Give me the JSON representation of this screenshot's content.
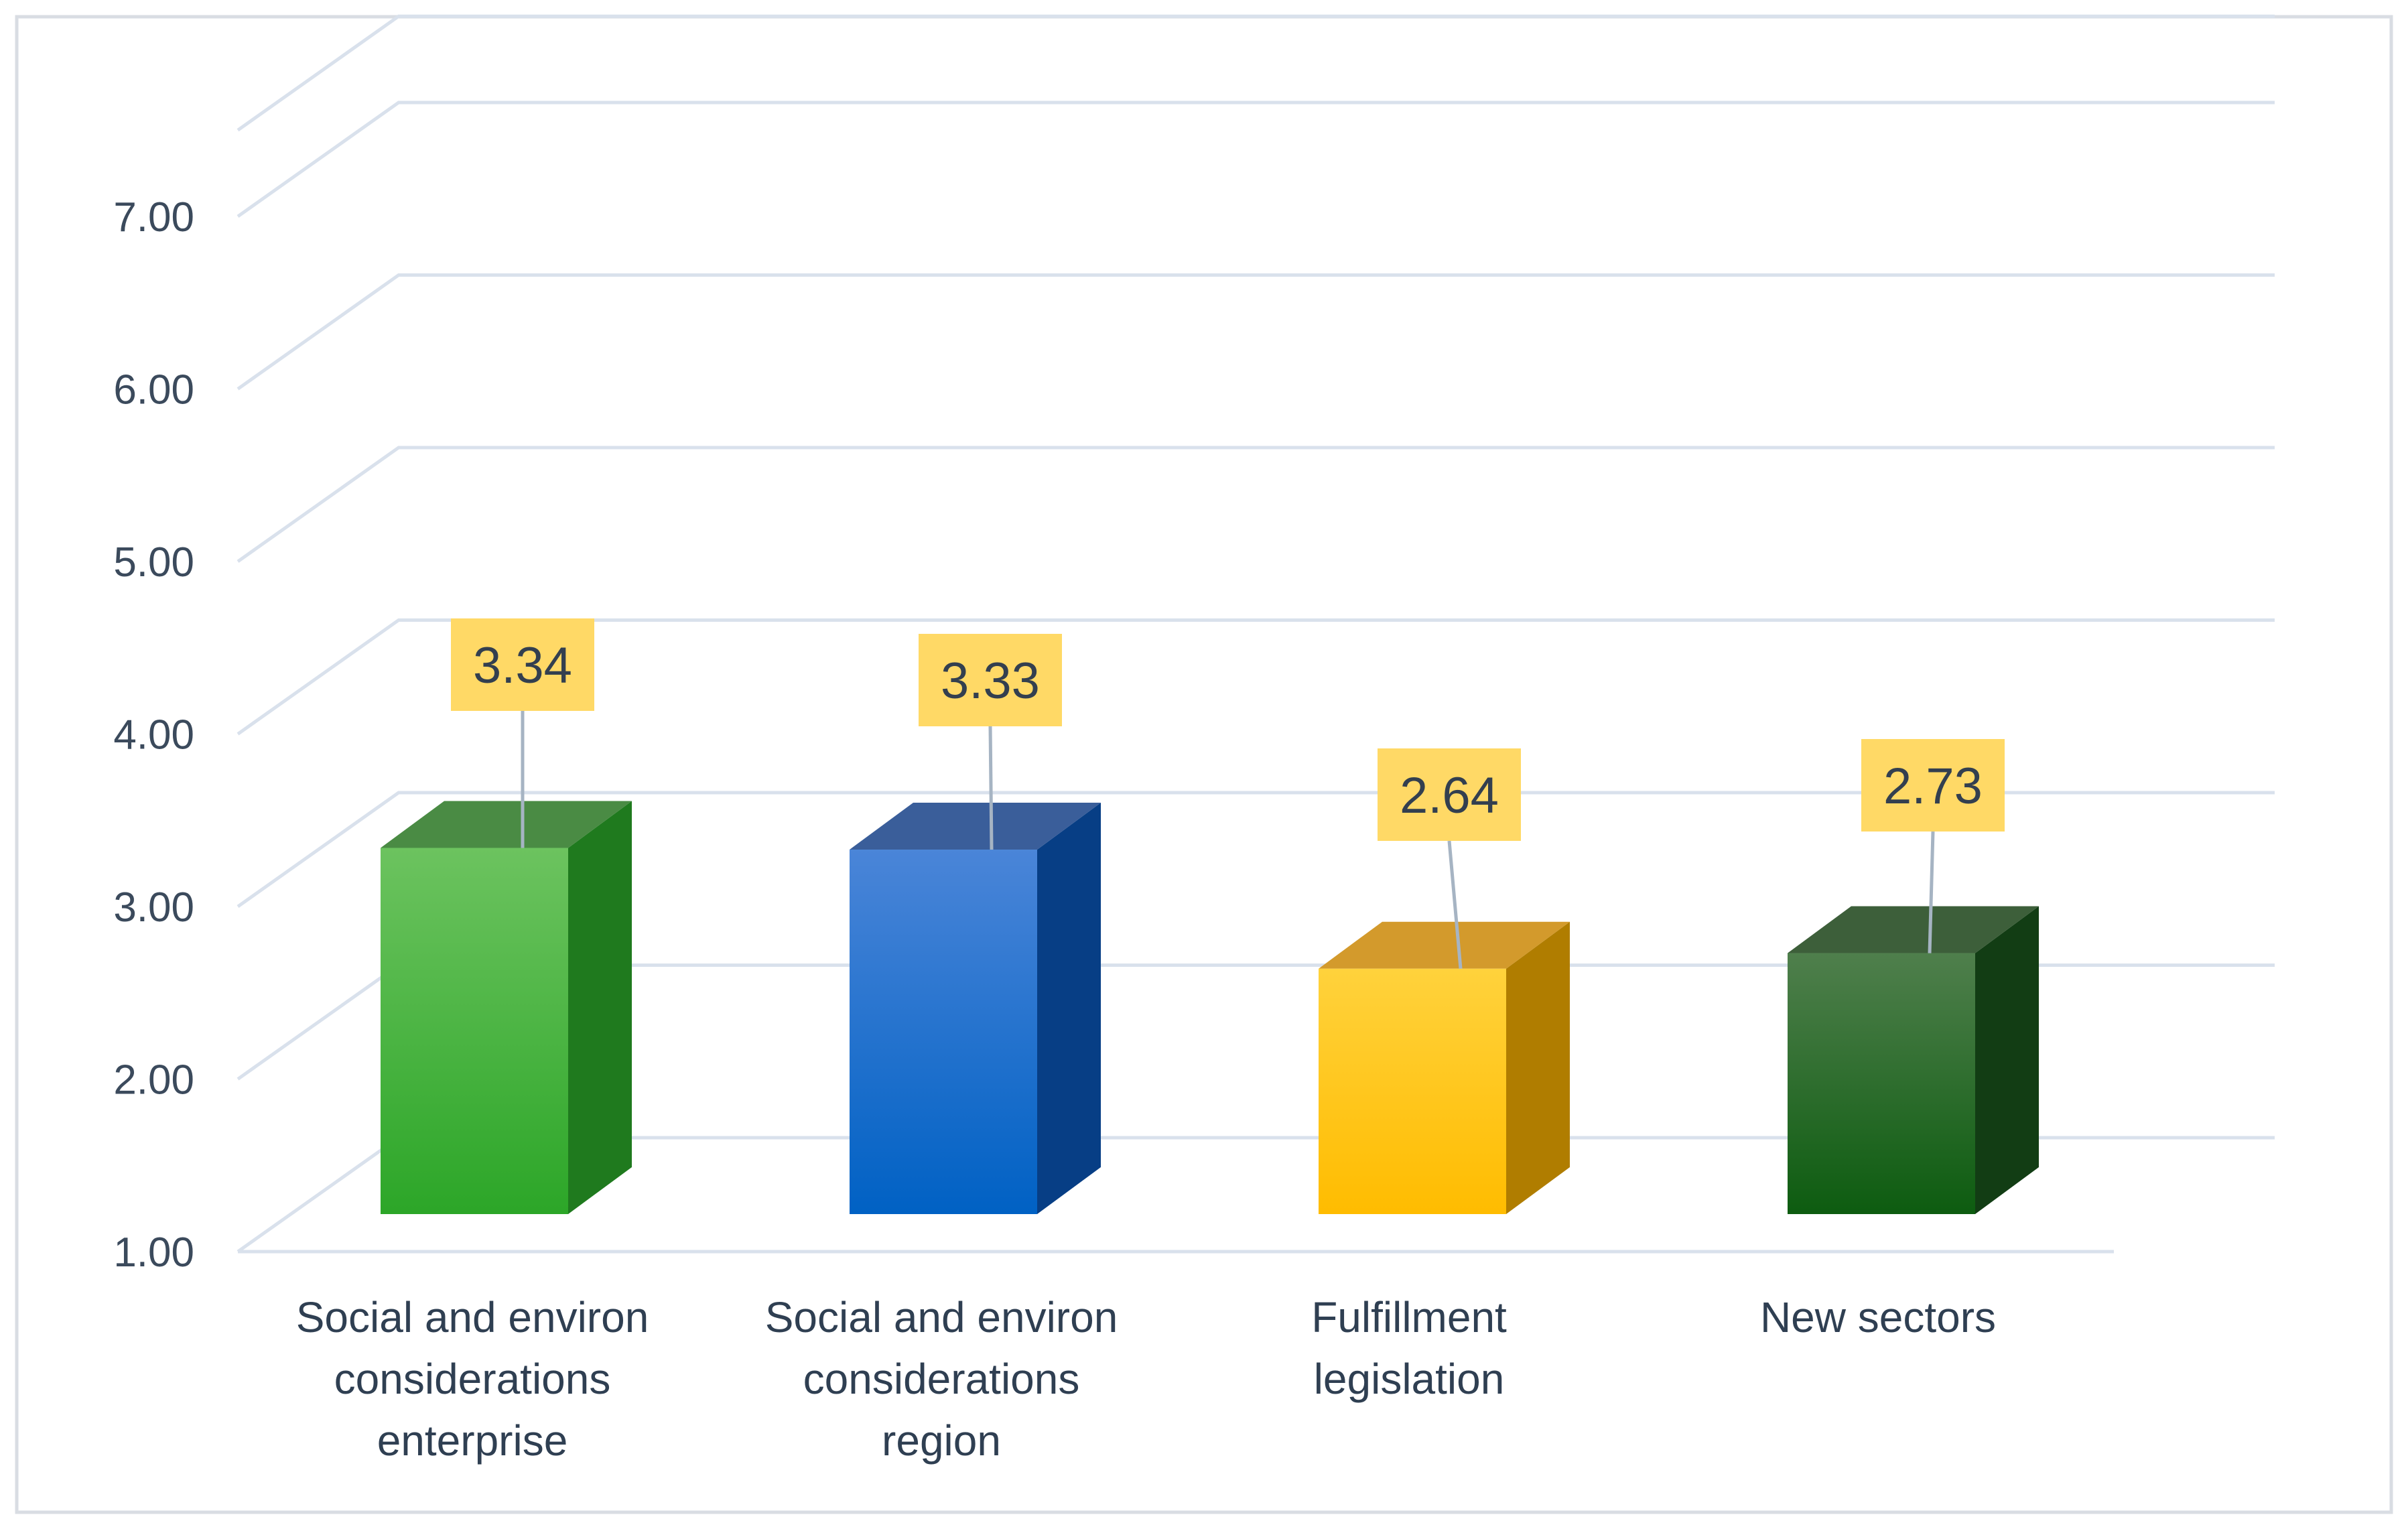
{
  "chart_data": {
    "type": "bar",
    "title": "",
    "xlabel": "",
    "ylabel": "",
    "ylim": [
      1,
      7.5
    ],
    "yticks": [
      1,
      2,
      3,
      4,
      5,
      6,
      7
    ],
    "ytick_labels": [
      "1.00",
      "2.00",
      "3.00",
      "4.00",
      "5.00",
      "6.00",
      "7.00"
    ],
    "categories": [
      [
        "Social and environ",
        "considerations",
        "enterprise"
      ],
      [
        "Social and environ",
        "considerations",
        "region"
      ],
      [
        "Fulfillment",
        "legislation"
      ],
      [
        "New sectors"
      ]
    ],
    "values": [
      3.34,
      3.33,
      2.64,
      2.73
    ],
    "value_labels": [
      "3.34",
      "3.33",
      "2.64",
      "2.73"
    ],
    "grid": true,
    "style": "3d-column",
    "colors": [
      {
        "front_top": "#6cc35f",
        "front_bottom": "#2ca628",
        "side": "#1f7a1e",
        "top": "#4a8b44"
      },
      {
        "front_top": "#4a85d8",
        "front_bottom": "#0061c4",
        "side": "#073e85",
        "top": "#3a5e9a"
      },
      {
        "front_top": "#ffd23c",
        "front_bottom": "#ffbc00",
        "side": "#b07d00",
        "top": "#d39a2c"
      },
      {
        "front_top": "#4f7f4c",
        "front_bottom": "#0d5c10",
        "side": "#123d14",
        "top": "#3d5f3a"
      }
    ],
    "label_box_color": "#ffd966"
  }
}
